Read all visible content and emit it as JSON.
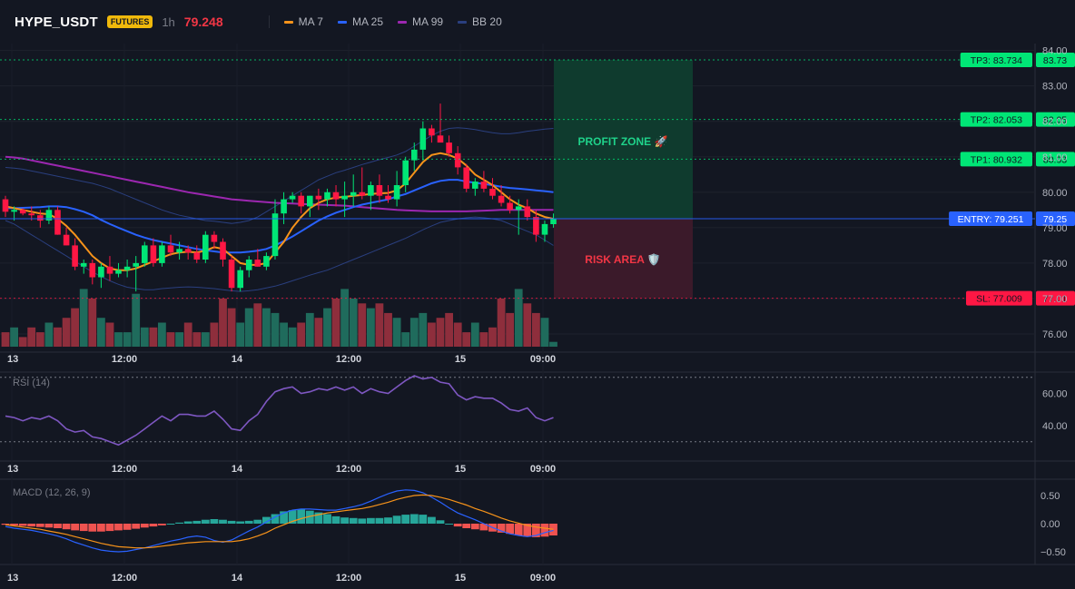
{
  "header": {
    "symbol": "HYPE_USDT",
    "badge": "FUTURES",
    "timeframe": "1h",
    "last_price": "79.248",
    "legend": [
      {
        "label": "MA 7",
        "color": "#f7931a"
      },
      {
        "label": "MA 25",
        "color": "#2962ff"
      },
      {
        "label": "MA 99",
        "color": "#9c27b0"
      },
      {
        "label": "BB 20",
        "color": "#2a3f7f"
      }
    ]
  },
  "colors": {
    "up": "#089981",
    "down": "#f23645",
    "up_candle": "#00e676",
    "down_candle": "#ff1744",
    "profit": "#00e676",
    "risk": "#f23645",
    "entry": "#2962ff"
  },
  "chart_data": [
    {
      "type": "candlestick",
      "title": "",
      "y_ticks": [
        "76.00",
        "77.00",
        "78.00",
        "79.00",
        "80.00",
        "81.00",
        "82.00",
        "83.00",
        "84.00"
      ],
      "ylim": [
        75.7,
        84.05
      ],
      "x_ticks": [
        "13",
        "12:00",
        "14",
        "12:00",
        "15",
        "09:00"
      ],
      "candles_ohlc": [
        [
          79.8,
          79.9,
          79.3,
          79.45
        ],
        [
          79.45,
          79.6,
          79.2,
          79.5
        ],
        [
          79.5,
          79.55,
          79.35,
          79.4
        ],
        [
          79.4,
          79.6,
          79.2,
          79.35
        ],
        [
          79.35,
          79.5,
          79.0,
          79.2
        ],
        [
          79.2,
          79.6,
          79.1,
          79.5
        ],
        [
          79.5,
          79.6,
          78.8,
          78.8
        ],
        [
          78.8,
          79.0,
          78.5,
          78.5
        ],
        [
          78.5,
          78.7,
          77.8,
          77.9
        ],
        [
          77.9,
          78.1,
          77.7,
          78.0
        ],
        [
          78.0,
          78.1,
          77.4,
          77.6
        ],
        [
          77.6,
          78.0,
          77.3,
          77.9
        ],
        [
          77.9,
          78.2,
          77.5,
          77.7
        ],
        [
          77.7,
          78.0,
          77.6,
          77.8
        ],
        [
          77.8,
          78.1,
          77.6,
          77.9
        ],
        [
          77.9,
          78.2,
          77.2,
          78.0
        ],
        [
          78.0,
          78.6,
          77.9,
          78.5
        ],
        [
          78.5,
          78.7,
          77.9,
          78.0
        ],
        [
          78.0,
          78.6,
          77.9,
          78.5
        ],
        [
          78.5,
          78.8,
          78.2,
          78.3
        ],
        [
          78.3,
          78.6,
          78.1,
          78.4
        ],
        [
          78.4,
          78.5,
          78.1,
          78.3
        ],
        [
          78.3,
          78.5,
          78.0,
          78.1
        ],
        [
          78.1,
          78.9,
          78.0,
          78.8
        ],
        [
          78.8,
          78.9,
          78.4,
          78.6
        ],
        [
          78.6,
          78.7,
          77.9,
          78.1
        ],
        [
          78.1,
          78.2,
          77.2,
          77.3
        ],
        [
          77.3,
          77.9,
          77.2,
          77.8
        ],
        [
          77.8,
          78.2,
          77.6,
          78.1
        ],
        [
          78.1,
          78.4,
          77.9,
          77.9
        ],
        [
          77.9,
          78.3,
          77.8,
          78.2
        ],
        [
          78.2,
          79.8,
          78.1,
          79.4
        ],
        [
          79.4,
          80.0,
          79.1,
          79.8
        ],
        [
          79.8,
          80.0,
          79.7,
          79.9
        ],
        [
          79.9,
          80.0,
          79.4,
          79.6
        ],
        [
          79.6,
          79.9,
          79.3,
          79.9
        ],
        [
          79.9,
          80.1,
          79.5,
          79.8
        ],
        [
          79.8,
          80.1,
          79.6,
          80.0
        ],
        [
          80.0,
          80.2,
          79.6,
          79.8
        ],
        [
          79.8,
          80.3,
          79.3,
          79.9
        ],
        [
          79.9,
          80.5,
          79.6,
          80.0
        ],
        [
          80.0,
          80.7,
          79.8,
          79.9
        ],
        [
          79.9,
          80.3,
          79.5,
          80.2
        ],
        [
          80.2,
          80.5,
          79.7,
          79.9
        ],
        [
          79.9,
          80.2,
          79.7,
          79.8
        ],
        [
          79.8,
          80.6,
          79.6,
          80.2
        ],
        [
          80.2,
          81.0,
          80.0,
          80.9
        ],
        [
          80.9,
          81.4,
          80.6,
          81.2
        ],
        [
          81.2,
          82.0,
          80.9,
          81.8
        ],
        [
          81.8,
          81.9,
          81.4,
          81.6
        ],
        [
          81.6,
          82.5,
          81.5,
          81.4
        ],
        [
          81.4,
          81.6,
          81.0,
          81.1
        ],
        [
          81.1,
          81.3,
          80.5,
          80.7
        ],
        [
          80.7,
          80.8,
          80.0,
          80.1
        ],
        [
          80.1,
          80.4,
          79.9,
          80.3
        ],
        [
          80.3,
          80.6,
          80.0,
          80.1
        ],
        [
          80.1,
          80.4,
          79.8,
          79.9
        ],
        [
          79.9,
          80.2,
          79.6,
          79.7
        ],
        [
          79.7,
          79.9,
          79.4,
          79.5
        ],
        [
          79.5,
          79.8,
          78.8,
          79.6
        ],
        [
          79.6,
          79.8,
          79.2,
          79.3
        ],
        [
          79.3,
          79.5,
          78.6,
          78.8
        ],
        [
          78.8,
          79.2,
          78.6,
          79.1
        ],
        [
          79.1,
          79.4,
          79.0,
          79.25
        ]
      ],
      "volume_relative": [
        3,
        4,
        2,
        4,
        3,
        5,
        4,
        6,
        8,
        12,
        10,
        6,
        5,
        3,
        3,
        11,
        4,
        4,
        5,
        3,
        3,
        5,
        3,
        3,
        5,
        10,
        8,
        5,
        8,
        9,
        8,
        7,
        5,
        4,
        5,
        7,
        6,
        8,
        10,
        12,
        10,
        9,
        8,
        9,
        7,
        6,
        3,
        6,
        7,
        5,
        6,
        7,
        5,
        3,
        5,
        3,
        4,
        10,
        7,
        12,
        9,
        7,
        6,
        1
      ],
      "ma7": [
        79.6,
        79.55,
        79.5,
        79.45,
        79.4,
        79.38,
        79.25,
        79.05,
        78.8,
        78.5,
        78.2,
        78.0,
        77.85,
        77.8,
        77.8,
        77.85,
        77.95,
        78.05,
        78.15,
        78.25,
        78.3,
        78.32,
        78.3,
        78.35,
        78.45,
        78.4,
        78.2,
        78.0,
        77.95,
        77.95,
        78.0,
        78.3,
        78.6,
        79.0,
        79.3,
        79.55,
        79.7,
        79.8,
        79.85,
        79.87,
        79.9,
        79.92,
        79.95,
        79.97,
        79.98,
        80.05,
        80.25,
        80.55,
        80.85,
        81.05,
        81.1,
        81.05,
        80.95,
        80.75,
        80.5,
        80.35,
        80.2,
        80.0,
        79.8,
        79.65,
        79.55,
        79.4,
        79.3,
        79.25
      ],
      "ma25": [
        79.55,
        79.55,
        79.56,
        79.57,
        79.58,
        79.6,
        79.6,
        79.58,
        79.52,
        79.45,
        79.35,
        79.22,
        79.1,
        79.0,
        78.9,
        78.8,
        78.72,
        78.65,
        78.6,
        78.55,
        78.5,
        78.45,
        78.4,
        78.36,
        78.33,
        78.3,
        78.3,
        78.3,
        78.32,
        78.35,
        78.4,
        78.5,
        78.62,
        78.75,
        78.9,
        79.05,
        79.2,
        79.32,
        79.42,
        79.5,
        79.58,
        79.65,
        79.7,
        79.75,
        79.8,
        79.88,
        79.95,
        80.05,
        80.15,
        80.25,
        80.32,
        80.35,
        80.35,
        80.3,
        80.27,
        80.23,
        80.2,
        80.15,
        80.12,
        80.1,
        80.08,
        80.05,
        80.03,
        80.0
      ],
      "ma99": [
        81.0,
        80.98,
        80.95,
        80.9,
        80.85,
        80.8,
        80.75,
        80.7,
        80.65,
        80.6,
        80.55,
        80.5,
        80.45,
        80.4,
        80.35,
        80.3,
        80.25,
        80.2,
        80.15,
        80.1,
        80.05,
        80.0,
        79.96,
        79.92,
        79.88,
        79.84,
        79.8,
        79.78,
        79.76,
        79.74,
        79.72,
        79.7,
        79.69,
        79.68,
        79.67,
        79.66,
        79.65,
        79.64,
        79.63,
        79.62,
        79.6,
        79.58,
        79.56,
        79.54,
        79.52,
        79.5,
        79.49,
        79.48,
        79.47,
        79.46,
        79.46,
        79.46,
        79.46,
        79.46,
        79.47,
        79.48,
        79.49,
        79.5,
        79.5,
        79.5,
        79.5,
        79.5,
        79.5,
        79.5
      ],
      "bb_upper": [
        80.7,
        80.68,
        80.65,
        80.6,
        80.55,
        80.5,
        80.45,
        80.4,
        80.35,
        80.3,
        80.25,
        80.18,
        80.1,
        80.0,
        79.9,
        79.8,
        79.7,
        79.6,
        79.5,
        79.42,
        79.35,
        79.3,
        79.25,
        79.2,
        79.18,
        79.15,
        79.12,
        79.15,
        79.2,
        79.3,
        79.45,
        79.6,
        79.75,
        79.9,
        80.05,
        80.2,
        80.35,
        80.45,
        80.55,
        80.62,
        80.7,
        80.78,
        80.85,
        80.92,
        80.98,
        81.05,
        81.15,
        81.3,
        81.45,
        81.6,
        81.72,
        81.8,
        81.82,
        81.8,
        81.77,
        81.72,
        81.68,
        81.65,
        81.65,
        81.68,
        81.72,
        81.75,
        81.78,
        81.8
      ],
      "bb_lower": [
        79.2,
        79.1,
        78.95,
        78.8,
        78.65,
        78.5,
        78.35,
        78.2,
        78.05,
        77.9,
        77.75,
        77.62,
        77.5,
        77.4,
        77.32,
        77.28,
        77.25,
        77.25,
        77.28,
        77.3,
        77.32,
        77.33,
        77.32,
        77.3,
        77.28,
        77.25,
        77.22,
        77.2,
        77.22,
        77.25,
        77.3,
        77.35,
        77.42,
        77.5,
        77.58,
        77.66,
        77.73,
        77.8,
        77.9,
        78.0,
        78.1,
        78.2,
        78.3,
        78.4,
        78.5,
        78.6,
        78.7,
        78.82,
        78.94,
        79.05,
        79.15,
        79.2,
        79.25,
        79.28,
        79.3,
        79.28,
        79.25,
        79.2,
        79.1,
        79.0,
        78.9,
        78.8,
        78.65,
        78.5
      ],
      "levels": [
        {
          "name": "TP3",
          "label": "TP3: 83.734",
          "axis": "83.73",
          "value": 83.734,
          "color": "#00e676"
        },
        {
          "name": "TP2",
          "label": "TP2: 82.053",
          "axis": "82.05",
          "value": 82.053,
          "color": "#00e676"
        },
        {
          "name": "TP1",
          "label": "TP1: 80.932",
          "axis": "80.93",
          "value": 80.932,
          "color": "#00e676"
        },
        {
          "name": "ENTRY",
          "label": "ENTRY: 79.251",
          "axis": "79.25",
          "value": 79.251,
          "color": "#2962ff"
        },
        {
          "name": "SL",
          "label": "SL: 77.009",
          "axis": "77.01",
          "value": 77.009,
          "color": "#ff1744"
        }
      ],
      "zones": {
        "profit_label": "PROFIT ZONE 🚀",
        "risk_label": "RISK AREA 🛡️"
      }
    },
    {
      "type": "line",
      "title": "RSI (14)",
      "y_ticks": [
        "40.00",
        "60.00"
      ],
      "ylim": [
        20,
        80
      ],
      "levels": [
        70,
        30
      ],
      "values": [
        46,
        45,
        43,
        45,
        44,
        46,
        43,
        38,
        36,
        37,
        33,
        32,
        30,
        28,
        31,
        34,
        38,
        42,
        46,
        43,
        47,
        47,
        46,
        46,
        49,
        44,
        38,
        37,
        43,
        47,
        55,
        61,
        63,
        64,
        60,
        61,
        63,
        62,
        64,
        62,
        64,
        60,
        63,
        61,
        60,
        64,
        68,
        71,
        69,
        70,
        67,
        66,
        59,
        56,
        58,
        57,
        57,
        54,
        50,
        49,
        51,
        45,
        43,
        45
      ]
    },
    {
      "type": "bar",
      "title": "MACD (12, 26, 9)",
      "y_ticks": [
        "0.50",
        "0.00",
        "−0.50"
      ],
      "ylim": [
        -0.7,
        0.7
      ],
      "histogram": [
        -0.02,
        -0.03,
        -0.04,
        -0.05,
        -0.06,
        -0.07,
        -0.08,
        -0.1,
        -0.12,
        -0.13,
        -0.14,
        -0.14,
        -0.13,
        -0.12,
        -0.11,
        -0.09,
        -0.07,
        -0.05,
        -0.03,
        0.0,
        0.02,
        0.04,
        0.05,
        0.07,
        0.08,
        0.07,
        0.05,
        0.04,
        0.05,
        0.07,
        0.12,
        0.17,
        0.22,
        0.24,
        0.25,
        0.23,
        0.2,
        0.17,
        0.13,
        0.11,
        0.1,
        0.09,
        0.1,
        0.1,
        0.11,
        0.14,
        0.16,
        0.17,
        0.16,
        0.12,
        0.06,
        0.0,
        -0.05,
        -0.08,
        -0.1,
        -0.12,
        -0.14,
        -0.16,
        -0.18,
        -0.21,
        -0.23,
        -0.24,
        -0.23,
        -0.21
      ],
      "macd": [
        -0.05,
        -0.08,
        -0.1,
        -0.12,
        -0.15,
        -0.18,
        -0.22,
        -0.27,
        -0.33,
        -0.38,
        -0.43,
        -0.47,
        -0.49,
        -0.5,
        -0.49,
        -0.46,
        -0.43,
        -0.39,
        -0.35,
        -0.31,
        -0.28,
        -0.24,
        -0.22,
        -0.24,
        -0.3,
        -0.33,
        -0.29,
        -0.21,
        -0.13,
        -0.06,
        0.03,
        0.12,
        0.19,
        0.24,
        0.26,
        0.26,
        0.25,
        0.24,
        0.24,
        0.27,
        0.3,
        0.34,
        0.4,
        0.47,
        0.53,
        0.58,
        0.6,
        0.59,
        0.55,
        0.47,
        0.38,
        0.28,
        0.19,
        0.13,
        0.07,
        0.0,
        -0.07,
        -0.13,
        -0.18,
        -0.21,
        -0.23,
        -0.21,
        -0.16,
        -0.12
      ],
      "signal": [
        -0.02,
        -0.04,
        -0.06,
        -0.08,
        -0.1,
        -0.13,
        -0.16,
        -0.19,
        -0.23,
        -0.27,
        -0.31,
        -0.35,
        -0.38,
        -0.41,
        -0.42,
        -0.43,
        -0.43,
        -0.42,
        -0.4,
        -0.38,
        -0.36,
        -0.34,
        -0.33,
        -0.32,
        -0.32,
        -0.32,
        -0.32,
        -0.3,
        -0.27,
        -0.22,
        -0.16,
        -0.08,
        -0.02,
        0.04,
        0.09,
        0.13,
        0.16,
        0.19,
        0.21,
        0.23,
        0.25,
        0.27,
        0.3,
        0.34,
        0.38,
        0.43,
        0.47,
        0.5,
        0.51,
        0.5,
        0.47,
        0.43,
        0.38,
        0.33,
        0.27,
        0.22,
        0.16,
        0.1,
        0.05,
        0.01,
        -0.03,
        -0.06,
        -0.08,
        -0.1
      ]
    }
  ]
}
